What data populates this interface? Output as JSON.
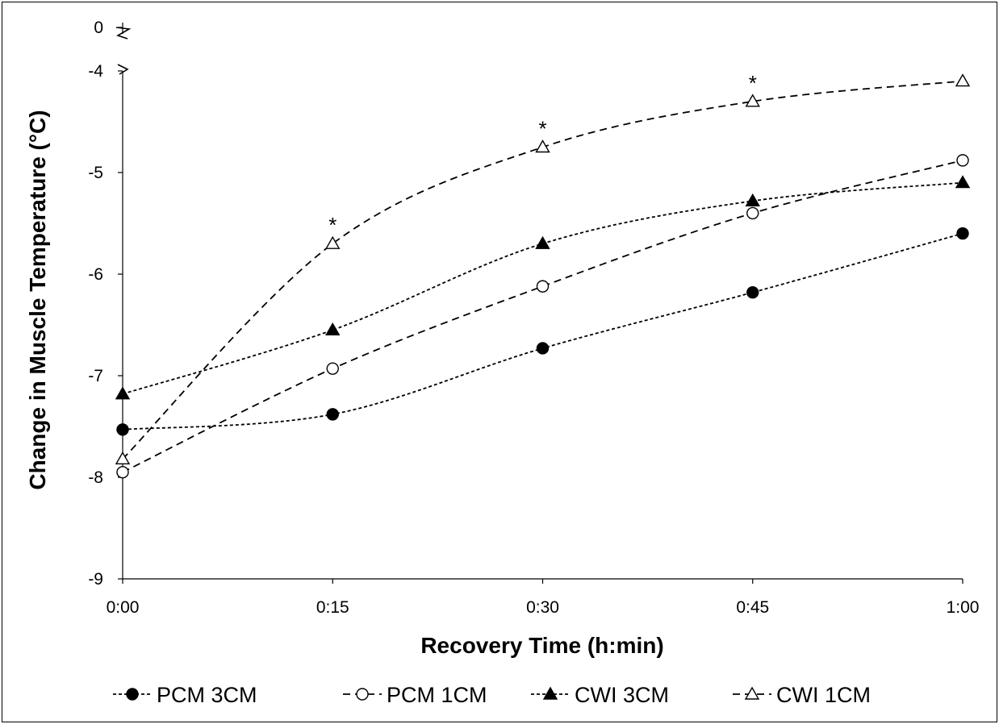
{
  "chart_data": {
    "type": "line",
    "xlabel": "Recovery Time (h:min)",
    "ylabel": "Change in Muscle Temperature (°C)",
    "categories": [
      "0:00",
      "0:15",
      "0:30",
      "0:45",
      "1:00"
    ],
    "ylim": [
      -9,
      -4
    ],
    "yticks": [
      "0",
      "-4",
      "-5",
      "-6",
      "-7",
      "-8",
      "-9"
    ],
    "axis_break": "between 0 and -4",
    "grid": false,
    "legend_position": "bottom",
    "series": [
      {
        "name": "PCM 3CM",
        "marker": "filled-circle",
        "line": "dotted-dash",
        "values": [
          -7.53,
          -7.38,
          -6.73,
          -6.18,
          -5.6
        ]
      },
      {
        "name": "PCM 1CM",
        "marker": "open-circle",
        "line": "dashed",
        "values": [
          -7.95,
          -6.93,
          -6.12,
          -5.4,
          -4.88
        ]
      },
      {
        "name": "CWI 3CM",
        "marker": "filled-triangle",
        "line": "dotted-dash",
        "values": [
          -7.18,
          -6.55,
          -5.7,
          -5.28,
          -5.1
        ]
      },
      {
        "name": "CWI 1CM",
        "marker": "open-triangle",
        "line": "dashed",
        "values": [
          -7.82,
          -5.7,
          -4.75,
          -4.3,
          -4.1
        ]
      }
    ],
    "annotations": [
      {
        "text": "*",
        "series": "CWI 1CM",
        "category": "0:15"
      },
      {
        "text": "*",
        "series": "CWI 1CM",
        "category": "0:30"
      },
      {
        "text": "*",
        "series": "CWI 1CM",
        "category": "0:45"
      }
    ]
  }
}
